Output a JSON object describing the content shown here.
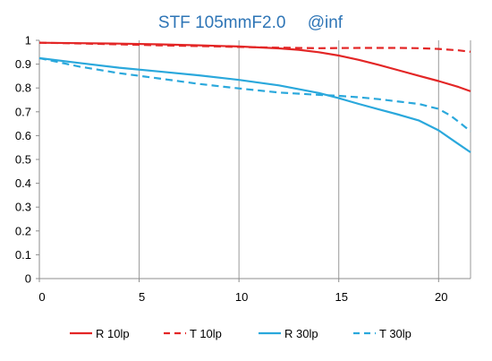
{
  "chart_data": {
    "type": "line",
    "title": "STF 105mmF2.0  @inf",
    "xlabel": "",
    "ylabel": "",
    "xlim": [
      0,
      21.6
    ],
    "ylim": [
      0,
      1
    ],
    "x_ticks": [
      "0",
      "5",
      "10",
      "15",
      "20"
    ],
    "y_ticks": [
      "0",
      "0.1",
      "0.2",
      "0.3",
      "0.4",
      "0.5",
      "0.6",
      "0.7",
      "0.8",
      "0.9",
      "1"
    ],
    "grid": "vertical",
    "legend_position": "bottom",
    "series": [
      {
        "name": "R 10lp",
        "color": "#e32626",
        "dash": "solid",
        "points": [
          [
            0,
            0.99
          ],
          [
            2,
            0.988
          ],
          [
            4,
            0.986
          ],
          [
            6,
            0.983
          ],
          [
            8,
            0.979
          ],
          [
            10,
            0.974
          ],
          [
            12,
            0.966
          ],
          [
            13,
            0.96
          ],
          [
            14,
            0.95
          ],
          [
            15,
            0.936
          ],
          [
            16,
            0.918
          ],
          [
            17,
            0.897
          ],
          [
            18,
            0.874
          ],
          [
            19,
            0.851
          ],
          [
            20,
            0.829
          ],
          [
            21,
            0.804
          ],
          [
            21.6,
            0.786
          ]
        ]
      },
      {
        "name": "T 10lp",
        "color": "#e32626",
        "dash": "dashed",
        "points": [
          [
            0,
            0.99
          ],
          [
            2,
            0.987
          ],
          [
            4,
            0.983
          ],
          [
            6,
            0.979
          ],
          [
            8,
            0.976
          ],
          [
            10,
            0.972
          ],
          [
            12,
            0.969
          ],
          [
            14,
            0.967
          ],
          [
            16,
            0.968
          ],
          [
            18,
            0.968
          ],
          [
            19,
            0.967
          ],
          [
            20,
            0.964
          ],
          [
            21,
            0.958
          ],
          [
            21.6,
            0.952
          ]
        ]
      },
      {
        "name": "R 30lp",
        "color": "#2aa8dc",
        "dash": "solid",
        "points": [
          [
            0,
            0.925
          ],
          [
            2,
            0.905
          ],
          [
            4,
            0.885
          ],
          [
            6,
            0.869
          ],
          [
            8,
            0.853
          ],
          [
            10,
            0.834
          ],
          [
            12,
            0.811
          ],
          [
            14,
            0.779
          ],
          [
            15,
            0.757
          ],
          [
            16,
            0.733
          ],
          [
            17,
            0.71
          ],
          [
            18,
            0.688
          ],
          [
            19,
            0.664
          ],
          [
            20,
            0.622
          ],
          [
            20.8,
            0.576
          ],
          [
            21.6,
            0.53
          ]
        ]
      },
      {
        "name": "T 30lp",
        "color": "#2aa8dc",
        "dash": "dashed",
        "points": [
          [
            0,
            0.925
          ],
          [
            2,
            0.89
          ],
          [
            4,
            0.862
          ],
          [
            6,
            0.84
          ],
          [
            8,
            0.817
          ],
          [
            10,
            0.798
          ],
          [
            12,
            0.781
          ],
          [
            14,
            0.771
          ],
          [
            15,
            0.767
          ],
          [
            16,
            0.761
          ],
          [
            17,
            0.753
          ],
          [
            18,
            0.743
          ],
          [
            19,
            0.733
          ],
          [
            20,
            0.712
          ],
          [
            20.6,
            0.684
          ],
          [
            21.1,
            0.652
          ],
          [
            21.6,
            0.618
          ]
        ]
      }
    ]
  }
}
